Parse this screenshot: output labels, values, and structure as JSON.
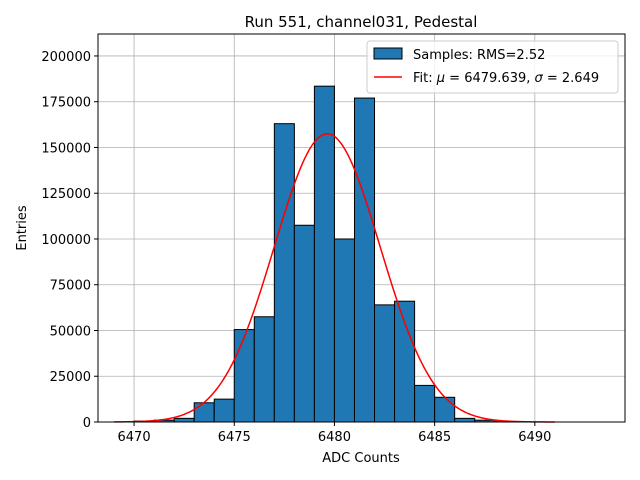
{
  "chart_data": {
    "type": "bar",
    "title": "Run 551, channel031, Pedestal",
    "xlabel": "ADC Counts",
    "ylabel": "Entries",
    "xlim": [
      6468.2,
      6494.5
    ],
    "ylim": [
      0,
      212000
    ],
    "xticks": [
      6470,
      6475,
      6480,
      6485,
      6490
    ],
    "yticks": [
      0,
      25000,
      50000,
      75000,
      100000,
      125000,
      150000,
      175000,
      200000
    ],
    "grid": true,
    "legend_position": "top-right",
    "histogram": {
      "name": "Samples: RMS=2.52",
      "color": "#1f77b4",
      "edgecolor": "#000000",
      "bin_width": 1,
      "bin_starts": [
        6470,
        6471,
        6472,
        6473,
        6474,
        6475,
        6476,
        6477,
        6478,
        6479,
        6480,
        6481,
        6482,
        6483,
        6484,
        6485,
        6486,
        6487,
        6488
      ],
      "values": [
        500,
        1000,
        2000,
        10500,
        12500,
        50500,
        57500,
        163000,
        107500,
        183500,
        100000,
        177000,
        64000,
        66000,
        20000,
        13500,
        2000,
        1000,
        300
      ]
    },
    "fit": {
      "name": "Fit: μ = 6479.639, σ = 2.649",
      "name_prefix": "Fit: ",
      "mu_label": "μ",
      "mu_value": " = 6479.639, ",
      "sigma_label": "σ",
      "sigma_value": " = 2.649",
      "color": "#ff0000",
      "mu": 6479.639,
      "sigma": 2.649,
      "amplitude": 157500,
      "x_range": [
        6469,
        6491
      ]
    }
  }
}
